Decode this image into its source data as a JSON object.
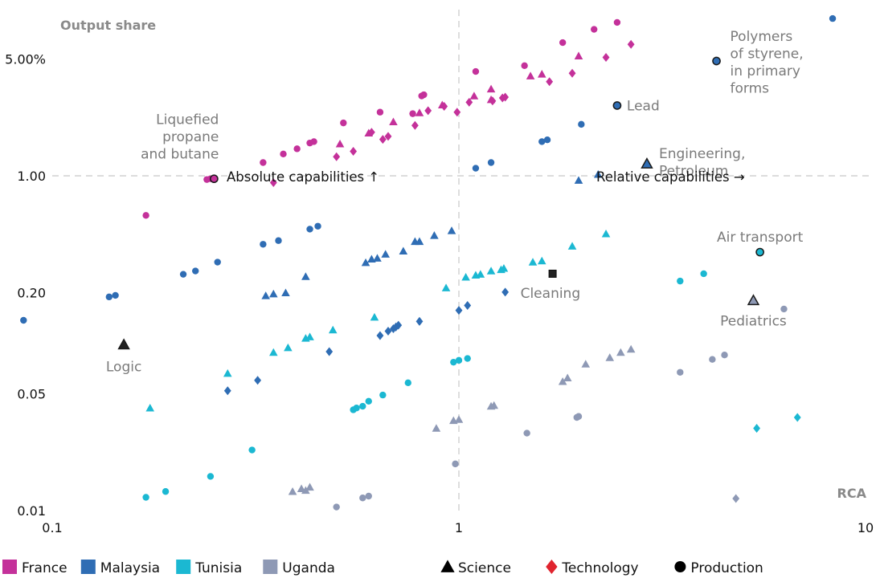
{
  "chart_data": {
    "type": "scatter",
    "xlabel": "RCA",
    "ylabel": "Output share",
    "x_scale": "log",
    "y_scale": "log",
    "xlim": [
      0.1,
      10
    ],
    "ylim": [
      0.01,
      10
    ],
    "x_ticks": [
      0.1,
      1,
      10
    ],
    "x_tick_labels": [
      "0.1",
      "1",
      "10"
    ],
    "y_ticks": [
      0.01,
      0.05,
      0.2,
      1,
      5
    ],
    "y_tick_labels": [
      "0.01",
      "0.05",
      "0.20",
      "1.00",
      "5.00%"
    ],
    "reference_lines": {
      "x": 1,
      "y": 1,
      "style": "dashed"
    },
    "grid": false,
    "legend_position": "bottom",
    "legend": {
      "countries": [
        {
          "name": "France",
          "color": "#c4319a"
        },
        {
          "name": "Malaysia",
          "color": "#2f6db4"
        },
        {
          "name": "Tunisia",
          "color": "#1bb8d2"
        },
        {
          "name": "Uganda",
          "color": "#8e99b5"
        }
      ],
      "types": [
        {
          "name": "Science",
          "shape": "triangle",
          "color": "#000000"
        },
        {
          "name": "Technology",
          "shape": "diamond",
          "color": "#e0242e"
        },
        {
          "name": "Production",
          "shape": "circle",
          "color": "#000000"
        }
      ]
    },
    "quadrant_labels": {
      "absolute": "Absolute capabilities ↑",
      "relative": "Relative capabilities →"
    },
    "series": [
      {
        "name": "France",
        "color": "#c4319a",
        "points": [
          {
            "x": 0.17,
            "y": 0.58,
            "shape": "circle"
          },
          {
            "x": 0.24,
            "y": 0.95,
            "shape": "circle"
          },
          {
            "x": 0.245,
            "y": 0.96,
            "shape": "circle"
          },
          {
            "x": 0.35,
            "y": 0.91,
            "shape": "diamond"
          },
          {
            "x": 0.33,
            "y": 1.2,
            "shape": "circle"
          },
          {
            "x": 0.37,
            "y": 1.35,
            "shape": "circle"
          },
          {
            "x": 0.4,
            "y": 1.45,
            "shape": "circle"
          },
          {
            "x": 0.43,
            "y": 1.57,
            "shape": "circle"
          },
          {
            "x": 0.44,
            "y": 1.6,
            "shape": "circle"
          },
          {
            "x": 0.5,
            "y": 1.3,
            "shape": "diamond"
          },
          {
            "x": 0.51,
            "y": 1.55,
            "shape": "triangle"
          },
          {
            "x": 0.52,
            "y": 2.07,
            "shape": "circle"
          },
          {
            "x": 0.55,
            "y": 1.4,
            "shape": "diamond"
          },
          {
            "x": 0.6,
            "y": 1.8,
            "shape": "triangle"
          },
          {
            "x": 0.61,
            "y": 1.82,
            "shape": "diamond"
          },
          {
            "x": 0.64,
            "y": 2.4,
            "shape": "circle"
          },
          {
            "x": 0.65,
            "y": 1.65,
            "shape": "diamond"
          },
          {
            "x": 0.67,
            "y": 1.72,
            "shape": "diamond"
          },
          {
            "x": 0.69,
            "y": 2.1,
            "shape": "triangle"
          },
          {
            "x": 0.77,
            "y": 2.35,
            "shape": "circle"
          },
          {
            "x": 0.78,
            "y": 2.0,
            "shape": "diamond"
          },
          {
            "x": 0.8,
            "y": 2.38,
            "shape": "triangle"
          },
          {
            "x": 0.81,
            "y": 3.0,
            "shape": "circle"
          },
          {
            "x": 0.82,
            "y": 3.05,
            "shape": "circle"
          },
          {
            "x": 0.84,
            "y": 2.45,
            "shape": "diamond"
          },
          {
            "x": 0.91,
            "y": 2.65,
            "shape": "triangle"
          },
          {
            "x": 0.92,
            "y": 2.6,
            "shape": "diamond"
          },
          {
            "x": 0.99,
            "y": 2.4,
            "shape": "diamond"
          },
          {
            "x": 1.06,
            "y": 2.75,
            "shape": "diamond"
          },
          {
            "x": 1.09,
            "y": 3.0,
            "shape": "triangle"
          },
          {
            "x": 1.1,
            "y": 4.2,
            "shape": "circle"
          },
          {
            "x": 1.2,
            "y": 2.85,
            "shape": "triangle"
          },
          {
            "x": 1.2,
            "y": 3.3,
            "shape": "triangle"
          },
          {
            "x": 1.21,
            "y": 2.8,
            "shape": "diamond"
          },
          {
            "x": 1.28,
            "y": 2.92,
            "shape": "diamond"
          },
          {
            "x": 1.3,
            "y": 2.95,
            "shape": "diamond"
          },
          {
            "x": 1.45,
            "y": 4.55,
            "shape": "circle"
          },
          {
            "x": 1.5,
            "y": 3.95,
            "shape": "triangle"
          },
          {
            "x": 1.6,
            "y": 4.05,
            "shape": "triangle"
          },
          {
            "x": 1.67,
            "y": 3.65,
            "shape": "diamond"
          },
          {
            "x": 1.8,
            "y": 6.25,
            "shape": "circle"
          },
          {
            "x": 1.9,
            "y": 4.1,
            "shape": "diamond"
          },
          {
            "x": 1.97,
            "y": 5.2,
            "shape": "triangle"
          },
          {
            "x": 2.15,
            "y": 7.5,
            "shape": "circle"
          },
          {
            "x": 2.3,
            "y": 5.1,
            "shape": "diamond"
          },
          {
            "x": 2.45,
            "y": 8.25,
            "shape": "circle"
          },
          {
            "x": 2.65,
            "y": 6.1,
            "shape": "diamond"
          }
        ]
      },
      {
        "name": "Malaysia",
        "color": "#2f6db4",
        "points": [
          {
            "x": 0.085,
            "y": 0.137,
            "shape": "circle"
          },
          {
            "x": 0.138,
            "y": 0.189,
            "shape": "circle"
          },
          {
            "x": 0.143,
            "y": 0.193,
            "shape": "circle"
          },
          {
            "x": 0.15,
            "y": 0.098,
            "shape": "triangle"
          },
          {
            "x": 0.21,
            "y": 0.258,
            "shape": "circle"
          },
          {
            "x": 0.225,
            "y": 0.27,
            "shape": "circle"
          },
          {
            "x": 0.255,
            "y": 0.305,
            "shape": "circle"
          },
          {
            "x": 0.27,
            "y": 0.052,
            "shape": "diamond"
          },
          {
            "x": 0.32,
            "y": 0.06,
            "shape": "diamond"
          },
          {
            "x": 0.33,
            "y": 0.39,
            "shape": "circle"
          },
          {
            "x": 0.335,
            "y": 0.192,
            "shape": "triangle"
          },
          {
            "x": 0.35,
            "y": 0.197,
            "shape": "triangle"
          },
          {
            "x": 0.36,
            "y": 0.41,
            "shape": "circle"
          },
          {
            "x": 0.375,
            "y": 0.2,
            "shape": "triangle"
          },
          {
            "x": 0.42,
            "y": 0.25,
            "shape": "triangle"
          },
          {
            "x": 0.43,
            "y": 0.48,
            "shape": "circle"
          },
          {
            "x": 0.45,
            "y": 0.5,
            "shape": "circle"
          },
          {
            "x": 0.48,
            "y": 0.089,
            "shape": "diamond"
          },
          {
            "x": 0.59,
            "y": 0.303,
            "shape": "triangle"
          },
          {
            "x": 0.61,
            "y": 0.318,
            "shape": "triangle"
          },
          {
            "x": 0.63,
            "y": 0.322,
            "shape": "triangle"
          },
          {
            "x": 0.64,
            "y": 0.111,
            "shape": "diamond"
          },
          {
            "x": 0.66,
            "y": 0.34,
            "shape": "triangle"
          },
          {
            "x": 0.67,
            "y": 0.118,
            "shape": "diamond"
          },
          {
            "x": 0.69,
            "y": 0.122,
            "shape": "diamond"
          },
          {
            "x": 0.7,
            "y": 0.125,
            "shape": "diamond"
          },
          {
            "x": 0.71,
            "y": 0.128,
            "shape": "diamond"
          },
          {
            "x": 0.73,
            "y": 0.355,
            "shape": "triangle"
          },
          {
            "x": 0.78,
            "y": 0.405,
            "shape": "triangle"
          },
          {
            "x": 0.8,
            "y": 0.405,
            "shape": "triangle"
          },
          {
            "x": 0.8,
            "y": 0.135,
            "shape": "diamond"
          },
          {
            "x": 0.87,
            "y": 0.44,
            "shape": "triangle"
          },
          {
            "x": 0.96,
            "y": 0.47,
            "shape": "triangle"
          },
          {
            "x": 1.0,
            "y": 0.157,
            "shape": "diamond"
          },
          {
            "x": 1.05,
            "y": 0.168,
            "shape": "diamond"
          },
          {
            "x": 1.1,
            "y": 1.11,
            "shape": "circle"
          },
          {
            "x": 1.2,
            "y": 1.2,
            "shape": "circle"
          },
          {
            "x": 1.3,
            "y": 0.202,
            "shape": "diamond"
          },
          {
            "x": 1.6,
            "y": 1.6,
            "shape": "circle"
          },
          {
            "x": 1.65,
            "y": 1.64,
            "shape": "circle"
          },
          {
            "x": 1.97,
            "y": 0.94,
            "shape": "triangle"
          },
          {
            "x": 2.0,
            "y": 2.03,
            "shape": "circle"
          },
          {
            "x": 2.2,
            "y": 1.02,
            "shape": "triangle"
          },
          {
            "x": 2.45,
            "y": 2.63,
            "shape": "circle"
          },
          {
            "x": 2.9,
            "y": 1.18,
            "shape": "triangle"
          },
          {
            "x": 8.3,
            "y": 8.7,
            "shape": "circle"
          }
        ]
      },
      {
        "name": "Tunisia",
        "color": "#1bb8d2",
        "points": [
          {
            "x": 0.17,
            "y": 0.012,
            "shape": "circle"
          },
          {
            "x": 0.174,
            "y": 0.041,
            "shape": "triangle"
          },
          {
            "x": 0.19,
            "y": 0.013,
            "shape": "circle"
          },
          {
            "x": 0.245,
            "y": 0.016,
            "shape": "circle"
          },
          {
            "x": 0.27,
            "y": 0.066,
            "shape": "triangle"
          },
          {
            "x": 0.31,
            "y": 0.023,
            "shape": "circle"
          },
          {
            "x": 0.35,
            "y": 0.088,
            "shape": "triangle"
          },
          {
            "x": 0.38,
            "y": 0.094,
            "shape": "triangle"
          },
          {
            "x": 0.42,
            "y": 0.107,
            "shape": "triangle"
          },
          {
            "x": 0.43,
            "y": 0.109,
            "shape": "triangle"
          },
          {
            "x": 0.49,
            "y": 0.12,
            "shape": "triangle"
          },
          {
            "x": 0.55,
            "y": 0.04,
            "shape": "circle"
          },
          {
            "x": 0.56,
            "y": 0.041,
            "shape": "circle"
          },
          {
            "x": 0.58,
            "y": 0.042,
            "shape": "circle"
          },
          {
            "x": 0.6,
            "y": 0.045,
            "shape": "circle"
          },
          {
            "x": 0.62,
            "y": 0.143,
            "shape": "triangle"
          },
          {
            "x": 0.65,
            "y": 0.049,
            "shape": "circle"
          },
          {
            "x": 0.75,
            "y": 0.058,
            "shape": "circle"
          },
          {
            "x": 0.93,
            "y": 0.214,
            "shape": "triangle"
          },
          {
            "x": 0.97,
            "y": 0.077,
            "shape": "circle"
          },
          {
            "x": 1.0,
            "y": 0.079,
            "shape": "circle"
          },
          {
            "x": 1.04,
            "y": 0.248,
            "shape": "triangle"
          },
          {
            "x": 1.05,
            "y": 0.081,
            "shape": "circle"
          },
          {
            "x": 1.1,
            "y": 0.255,
            "shape": "triangle"
          },
          {
            "x": 1.13,
            "y": 0.258,
            "shape": "triangle"
          },
          {
            "x": 1.2,
            "y": 0.27,
            "shape": "triangle"
          },
          {
            "x": 1.27,
            "y": 0.275,
            "shape": "triangle"
          },
          {
            "x": 1.29,
            "y": 0.28,
            "shape": "triangle"
          },
          {
            "x": 1.52,
            "y": 0.305,
            "shape": "triangle"
          },
          {
            "x": 1.6,
            "y": 0.31,
            "shape": "triangle"
          },
          {
            "x": 1.9,
            "y": 0.38,
            "shape": "triangle"
          },
          {
            "x": 2.3,
            "y": 0.45,
            "shape": "triangle"
          },
          {
            "x": 3.5,
            "y": 0.235,
            "shape": "circle"
          },
          {
            "x": 4.0,
            "y": 0.26,
            "shape": "circle"
          },
          {
            "x": 5.5,
            "y": 0.35,
            "shape": "circle"
          },
          {
            "x": 5.4,
            "y": 0.031,
            "shape": "diamond"
          },
          {
            "x": 6.8,
            "y": 0.036,
            "shape": "diamond"
          }
        ]
      },
      {
        "name": "Uganda",
        "color": "#8e99b5",
        "points": [
          {
            "x": 0.39,
            "y": 0.013,
            "shape": "triangle"
          },
          {
            "x": 0.41,
            "y": 0.0135,
            "shape": "triangle"
          },
          {
            "x": 0.42,
            "y": 0.0132,
            "shape": "triangle"
          },
          {
            "x": 0.43,
            "y": 0.0138,
            "shape": "triangle"
          },
          {
            "x": 0.5,
            "y": 0.0105,
            "shape": "circle"
          },
          {
            "x": 0.58,
            "y": 0.0119,
            "shape": "circle"
          },
          {
            "x": 0.6,
            "y": 0.0122,
            "shape": "circle"
          },
          {
            "x": 0.88,
            "y": 0.031,
            "shape": "triangle"
          },
          {
            "x": 0.97,
            "y": 0.0345,
            "shape": "triangle"
          },
          {
            "x": 1.0,
            "y": 0.035,
            "shape": "triangle"
          },
          {
            "x": 0.98,
            "y": 0.019,
            "shape": "circle"
          },
          {
            "x": 1.2,
            "y": 0.042,
            "shape": "triangle"
          },
          {
            "x": 1.22,
            "y": 0.0425,
            "shape": "triangle"
          },
          {
            "x": 1.47,
            "y": 0.029,
            "shape": "circle"
          },
          {
            "x": 1.8,
            "y": 0.059,
            "shape": "triangle"
          },
          {
            "x": 1.85,
            "y": 0.062,
            "shape": "triangle"
          },
          {
            "x": 1.95,
            "y": 0.036,
            "shape": "circle"
          },
          {
            "x": 1.97,
            "y": 0.0365,
            "shape": "circle"
          },
          {
            "x": 2.05,
            "y": 0.075,
            "shape": "triangle"
          },
          {
            "x": 2.35,
            "y": 0.082,
            "shape": "triangle"
          },
          {
            "x": 2.5,
            "y": 0.088,
            "shape": "triangle"
          },
          {
            "x": 2.65,
            "y": 0.092,
            "shape": "triangle"
          },
          {
            "x": 3.5,
            "y": 0.067,
            "shape": "circle"
          },
          {
            "x": 4.2,
            "y": 0.08,
            "shape": "circle"
          },
          {
            "x": 4.5,
            "y": 0.085,
            "shape": "circle"
          },
          {
            "x": 4.8,
            "y": 0.0118,
            "shape": "diamond"
          },
          {
            "x": 6.3,
            "y": 0.16,
            "shape": "circle"
          }
        ]
      }
    ],
    "annotations": [
      {
        "label": "Polymers\nof styrene,\nin primary\nforms",
        "x": 4.3,
        "y": 4.85,
        "shape": "circle",
        "color": "#2f6db4"
      },
      {
        "label": "Lead",
        "x": 2.45,
        "y": 2.63,
        "shape": "circle",
        "color": "#2f6db4"
      },
      {
        "label": "Engineering,\nPetroleum",
        "x": 2.9,
        "y": 1.18,
        "shape": "triangle",
        "color": "#2f6db4"
      },
      {
        "label": "Liquefied\npropane\nand butane",
        "x": 0.25,
        "y": 0.96,
        "shape": "circle",
        "color": "#c4319a"
      },
      {
        "label": "Air transport",
        "x": 5.5,
        "y": 0.35,
        "shape": "circle",
        "color": "#1bb8d2"
      },
      {
        "label": "Cleaning",
        "x": 1.7,
        "y": 0.26,
        "shape": "diamond",
        "color": "#2f6db4"
      },
      {
        "label": "Pediatrics",
        "x": 5.3,
        "y": 0.18,
        "shape": "triangle",
        "color": "#8e99b5"
      },
      {
        "label": "Logic",
        "x": 0.15,
        "y": 0.098,
        "shape": "triangle",
        "color": "#2f6db4"
      }
    ]
  }
}
